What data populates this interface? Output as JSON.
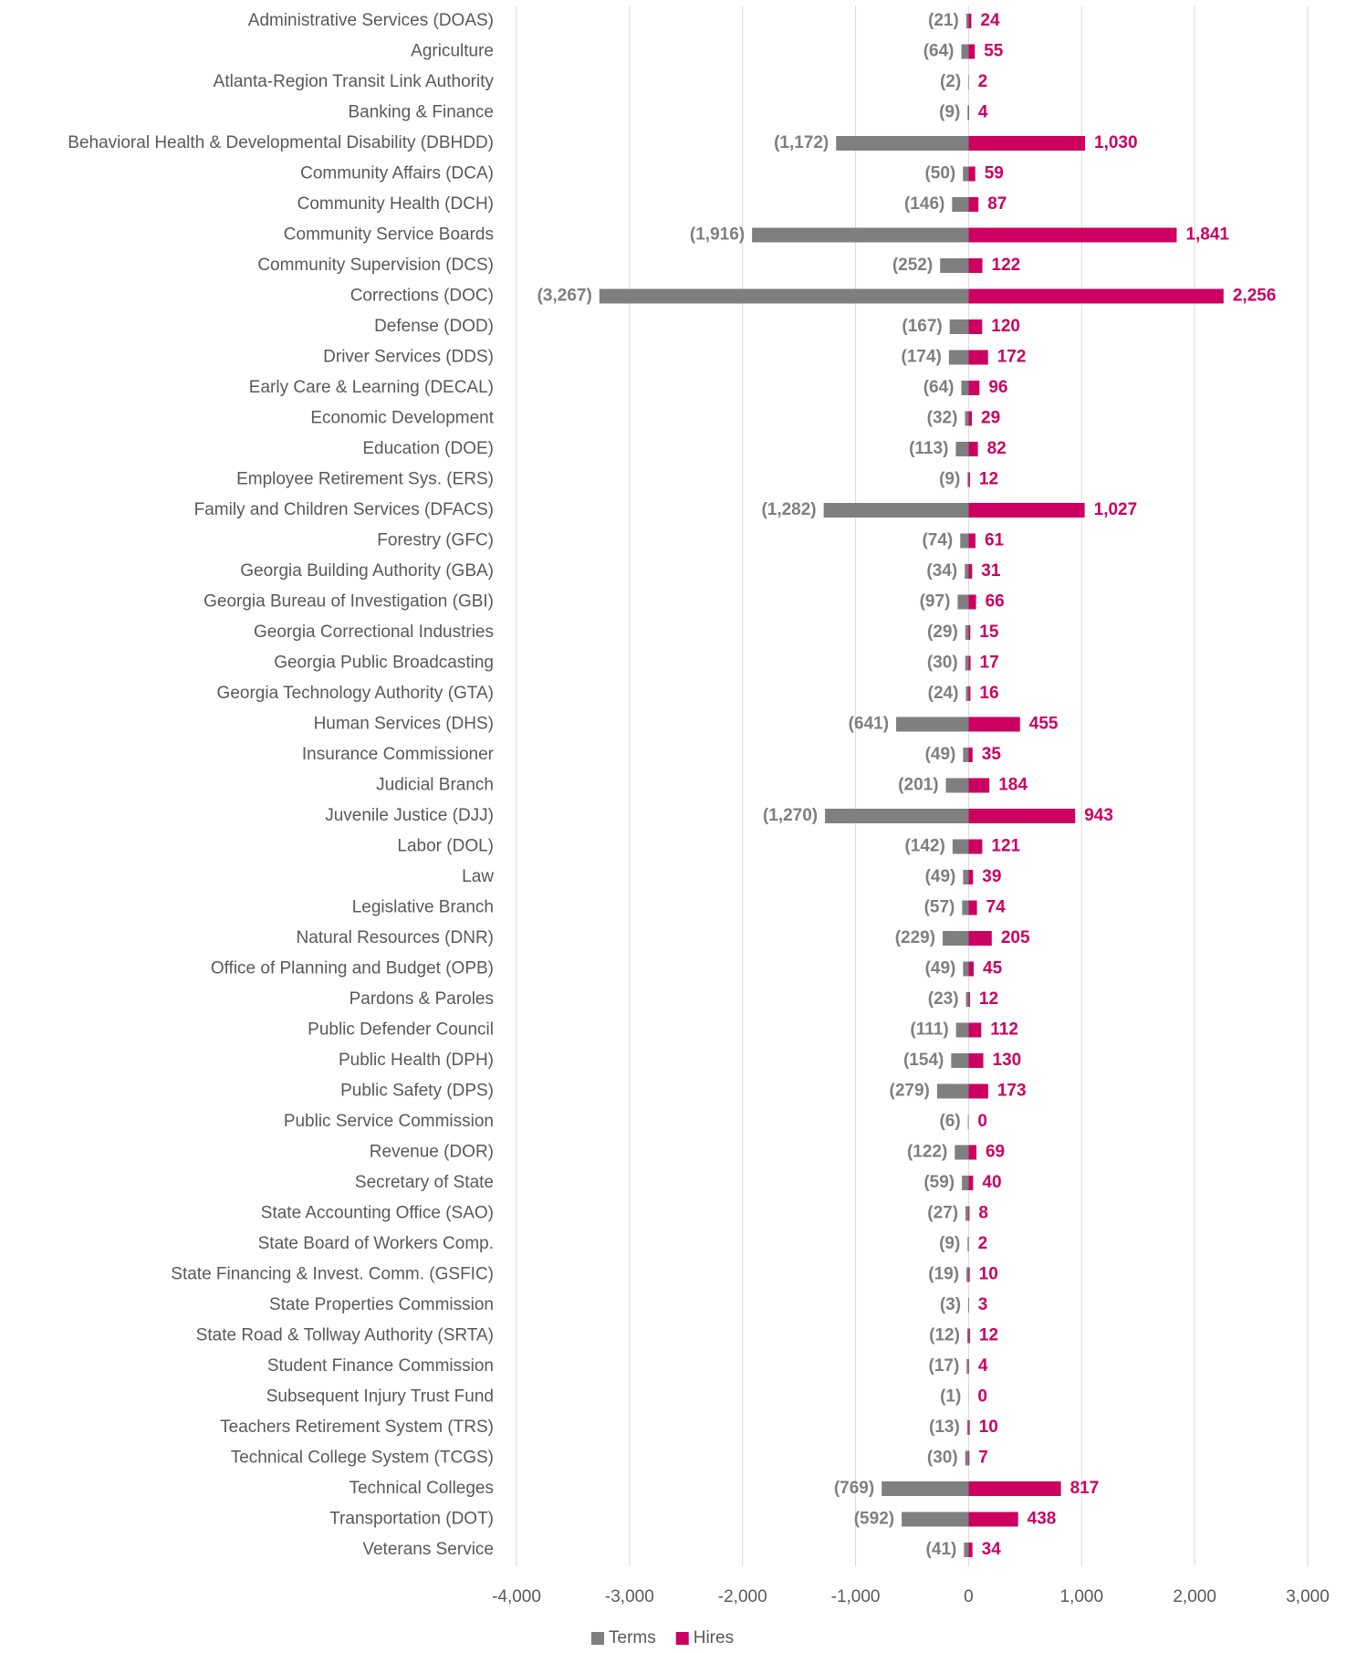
{
  "chart_data": {
    "type": "bar",
    "orientation": "horizontal",
    "categories": [
      "Administrative Services (DOAS)",
      "Agriculture",
      "Atlanta-Region Transit Link Authority",
      "Banking & Finance",
      "Behavioral Health & Developmental Disability (DBHDD)",
      "Community Affairs (DCA)",
      "Community Health (DCH)",
      "Community Service Boards",
      "Community Supervision (DCS)",
      "Corrections (DOC)",
      "Defense (DOD)",
      "Driver Services (DDS)",
      "Early Care & Learning (DECAL)",
      "Economic Development",
      "Education (DOE)",
      "Employee Retirement Sys. (ERS)",
      "Family and Children Services (DFACS)",
      "Forestry (GFC)",
      "Georgia Building Authority (GBA)",
      "Georgia Bureau of Investigation (GBI)",
      "Georgia Correctional Industries",
      "Georgia Public Broadcasting",
      "Georgia Technology Authority (GTA)",
      "Human Services (DHS)",
      "Insurance Commissioner",
      "Judicial Branch",
      "Juvenile Justice (DJJ)",
      "Labor (DOL)",
      "Law",
      "Legislative Branch",
      "Natural Resources (DNR)",
      "Office of Planning and Budget (OPB)",
      "Pardons & Paroles",
      "Public Defender Council",
      "Public Health (DPH)",
      "Public Safety (DPS)",
      "Public Service Commission",
      "Revenue (DOR)",
      "Secretary of State",
      "State Accounting Office (SAO)",
      "State Board of Workers Comp.",
      "State Financing & Invest. Comm. (GSFIC)",
      "State Properties Commission",
      "State Road & Tollway Authority (SRTA)",
      "Student Finance Commission",
      "Subsequent Injury Trust Fund",
      "Teachers Retirement System (TRS)",
      "Technical College System (TCGS)",
      "Technical Colleges",
      "Transportation (DOT)",
      "Veterans Service"
    ],
    "series": [
      {
        "name": "Terms",
        "color": "#7f7f7f",
        "values": [
          -21,
          -64,
          -2,
          -9,
          -1172,
          -50,
          -146,
          -1916,
          -252,
          -3267,
          -167,
          -174,
          -64,
          -32,
          -113,
          -9,
          -1282,
          -74,
          -34,
          -97,
          -29,
          -30,
          -24,
          -641,
          -49,
          -201,
          -1270,
          -142,
          -49,
          -57,
          -229,
          -49,
          -23,
          -111,
          -154,
          -279,
          -6,
          -122,
          -59,
          -27,
          -9,
          -19,
          -3,
          -12,
          -17,
          -1,
          -13,
          -30,
          -769,
          -592,
          -41
        ],
        "value_labels": [
          "(21)",
          "(64)",
          "(2)",
          "(9)",
          "(1,172)",
          "(50)",
          "(146)",
          "(1,916)",
          "(252)",
          "(3,267)",
          "(167)",
          "(174)",
          "(64)",
          "(32)",
          "(113)",
          "(9)",
          "(1,282)",
          "(74)",
          "(34)",
          "(97)",
          "(29)",
          "(30)",
          "(24)",
          "(641)",
          "(49)",
          "(201)",
          "(1,270)",
          "(142)",
          "(49)",
          "(57)",
          "(229)",
          "(49)",
          "(23)",
          "(111)",
          "(154)",
          "(279)",
          "(6)",
          "(122)",
          "(59)",
          "(27)",
          "(9)",
          "(19)",
          "(3)",
          "(12)",
          "(17)",
          "(1)",
          "(13)",
          "(30)",
          "(769)",
          "(592)",
          "(41)"
        ]
      },
      {
        "name": "Hires",
        "color": "#cc0060",
        "values": [
          24,
          55,
          2,
          4,
          1030,
          59,
          87,
          1841,
          122,
          2256,
          120,
          172,
          96,
          29,
          82,
          12,
          1027,
          61,
          31,
          66,
          15,
          17,
          16,
          455,
          35,
          184,
          943,
          121,
          39,
          74,
          205,
          45,
          12,
          112,
          130,
          173,
          0,
          69,
          40,
          8,
          2,
          10,
          3,
          12,
          4,
          0,
          10,
          7,
          817,
          438,
          34
        ],
        "value_labels": [
          "24",
          "55",
          "2",
          "4",
          "1,030",
          "59",
          "87",
          "1,841",
          "122",
          "2,256",
          "120",
          "172",
          "96",
          "29",
          "82",
          "12",
          "1,027",
          "61",
          "31",
          "66",
          "15",
          "17",
          "16",
          "455",
          "35",
          "184",
          "943",
          "121",
          "39",
          "74",
          "205",
          "45",
          "12",
          "112",
          "130",
          "173",
          "0",
          "69",
          "40",
          "8",
          "2",
          "10",
          "3",
          "12",
          "4",
          "0",
          "10",
          "7",
          "817",
          "438",
          "34"
        ]
      }
    ],
    "xlim": [
      -4000,
      3000
    ],
    "xticks": [
      {
        "value": -4000,
        "label": "-4,000"
      },
      {
        "value": -3000,
        "label": "-3,000"
      },
      {
        "value": -2000,
        "label": "-2,000"
      },
      {
        "value": -1000,
        "label": "-1,000"
      },
      0,
      {
        "value": 1000,
        "label": "1,000"
      },
      {
        "value": 2000,
        "label": "2,000"
      },
      {
        "value": 3000,
        "label": "3,000"
      }
    ],
    "grid": true,
    "legend": "bottom"
  }
}
